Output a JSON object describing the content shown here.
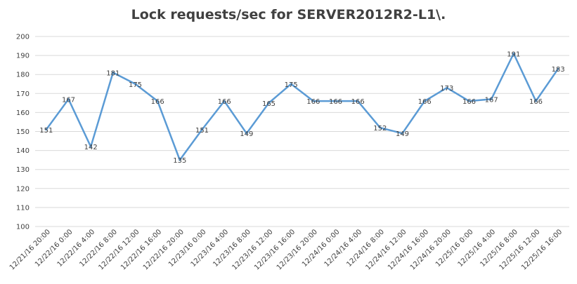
{
  "chart_data": {
    "type": "line",
    "title": "Lock requests/sec for SERVER2012R2-L1\\.",
    "xlabel": "",
    "ylabel": "",
    "ylim": [
      100,
      200
    ],
    "yticks": [
      100,
      110,
      120,
      130,
      140,
      150,
      160,
      170,
      180,
      190,
      200
    ],
    "grid": true,
    "legend": "none",
    "categories": [
      "12/21/16 20:00",
      "12/22/16 0:00",
      "12/22/16 4:00",
      "12/22/16 8:00",
      "12/22/16 12:00",
      "12/22/16 16:00",
      "12/22/16 20:00",
      "12/23/16 0:00",
      "12/23/16 4:00",
      "12/23/16 8:00",
      "12/23/16 12:00",
      "12/23/16 16:00",
      "12/23/16 20:00",
      "12/24/16 0:00",
      "12/24/16 4:00",
      "12/24/16 8:00",
      "12/24/16 12:00",
      "12/24/16 16:00",
      "12/24/16 20:00",
      "12/25/16 0:00",
      "12/25/16 4:00",
      "12/25/16 8:00",
      "12/25/16 12:00",
      "12/25/16 16:00"
    ],
    "series": [
      {
        "values": [
          151,
          167,
          142,
          181,
          175,
          166,
          135,
          151,
          166,
          149,
          165,
          175,
          166,
          166,
          166,
          152,
          149,
          166,
          173,
          166,
          167,
          191,
          166,
          183
        ]
      }
    ],
    "colors": {
      "line": "#5B9BD5",
      "grid": "#D9D9D9",
      "text": "#404040"
    }
  }
}
